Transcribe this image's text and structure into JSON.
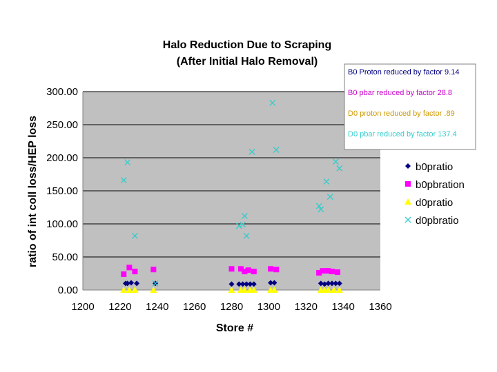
{
  "chart_data": {
    "type": "scatter",
    "title": "Halo Reduction Due to Scraping",
    "subtitle": "(After Initial Halo Removal)",
    "xlabel": "Store #",
    "ylabel": "ratio of int coll loss/HEP loss",
    "xlim": [
      1200,
      1360
    ],
    "ylim": [
      0,
      300
    ],
    "xticks": [
      1200,
      1220,
      1240,
      1260,
      1280,
      1300,
      1320,
      1340,
      1360
    ],
    "yticks": [
      "0.00",
      "50.00",
      "100.00",
      "150.00",
      "200.00",
      "250.00",
      "300.00"
    ],
    "grid": "horizontal",
    "plot_background": "#c0c0c0",
    "legend_position": "right",
    "series": [
      {
        "name": "b0pratio",
        "marker": "diamond",
        "color": "#000080",
        "points": [
          [
            1223,
            10
          ],
          [
            1224,
            10
          ],
          [
            1226,
            11
          ],
          [
            1229,
            10
          ],
          [
            1239,
            10
          ],
          [
            1280,
            9
          ],
          [
            1284,
            9
          ],
          [
            1286,
            9
          ],
          [
            1288,
            9
          ],
          [
            1290,
            9
          ],
          [
            1292,
            9
          ],
          [
            1301,
            11
          ],
          [
            1303,
            11
          ],
          [
            1328,
            10
          ],
          [
            1330,
            9
          ],
          [
            1332,
            10
          ],
          [
            1334,
            10
          ],
          [
            1336,
            10
          ],
          [
            1338,
            10
          ]
        ]
      },
      {
        "name": "b0pbration",
        "marker": "square",
        "color": "#ff00ff",
        "points": [
          [
            1222,
            24
          ],
          [
            1225,
            34
          ],
          [
            1228,
            28
          ],
          [
            1238,
            31
          ],
          [
            1280,
            32
          ],
          [
            1285,
            32
          ],
          [
            1287,
            28
          ],
          [
            1289,
            30
          ],
          [
            1292,
            28
          ],
          [
            1301,
            32
          ],
          [
            1304,
            31
          ],
          [
            1327,
            26
          ],
          [
            1329,
            29
          ],
          [
            1332,
            29
          ],
          [
            1334,
            28
          ],
          [
            1337,
            27
          ]
        ]
      },
      {
        "name": "d0pratio",
        "marker": "triangle",
        "color": "#ffff00",
        "points": [
          [
            1222,
            0
          ],
          [
            1225,
            0
          ],
          [
            1228,
            0
          ],
          [
            1238,
            0
          ],
          [
            1280,
            0
          ],
          [
            1285,
            0
          ],
          [
            1287,
            0
          ],
          [
            1290,
            0
          ],
          [
            1292,
            0
          ],
          [
            1301,
            0
          ],
          [
            1303,
            0
          ],
          [
            1328,
            0
          ],
          [
            1330,
            0
          ],
          [
            1332,
            0
          ],
          [
            1335,
            0
          ],
          [
            1338,
            0
          ]
        ]
      },
      {
        "name": "d0pbratio",
        "marker": "x",
        "color": "#33cccc",
        "points": [
          [
            1222,
            166
          ],
          [
            1224,
            193
          ],
          [
            1228,
            82
          ],
          [
            1239,
            10
          ],
          [
            1284,
            97
          ],
          [
            1286,
            99
          ],
          [
            1287,
            112
          ],
          [
            1288,
            82
          ],
          [
            1291,
            209
          ],
          [
            1302,
            283
          ],
          [
            1304,
            212
          ],
          [
            1327,
            127
          ],
          [
            1328,
            122
          ],
          [
            1331,
            164
          ],
          [
            1333,
            141
          ],
          [
            1336,
            194
          ],
          [
            1338,
            184
          ]
        ]
      }
    ],
    "annotations": [
      {
        "text": "B0 Proton reduced by factor 9.14",
        "color": "#000080"
      },
      {
        "text": "B0 pbar reduced by factor 28.8",
        "color": "#cc00cc"
      },
      {
        "text": "D0 proton reduced by factor .89",
        "color": "#cc9900"
      },
      {
        "text": "D0 pbar reduced by factor 137.4",
        "color": "#33cccc"
      }
    ]
  }
}
